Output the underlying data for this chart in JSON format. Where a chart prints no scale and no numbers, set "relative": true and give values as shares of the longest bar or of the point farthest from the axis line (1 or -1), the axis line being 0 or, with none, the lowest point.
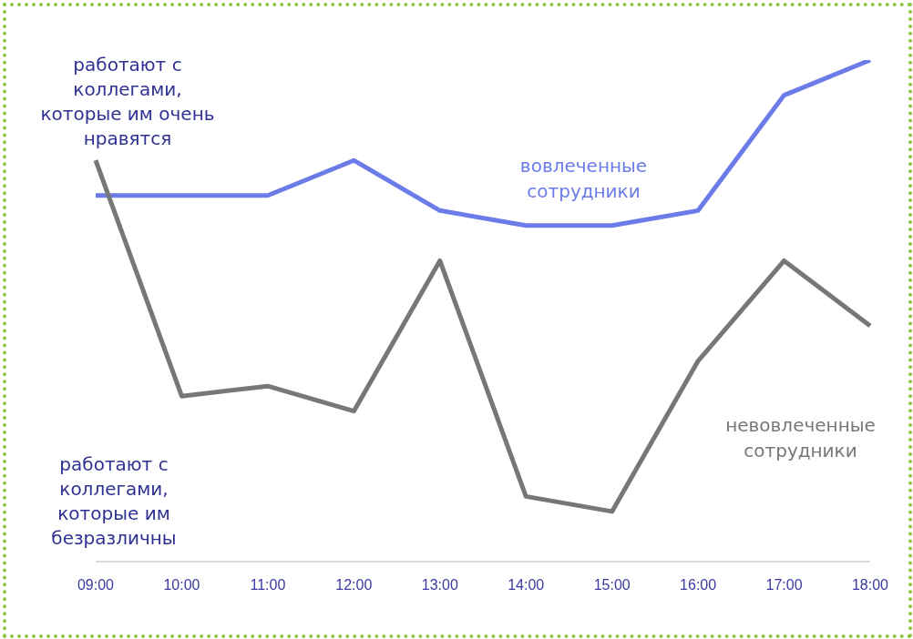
{
  "chart_data": {
    "type": "line",
    "relative": true,
    "categories": [
      "09:00",
      "10:00",
      "11:00",
      "12:00",
      "13:00",
      "14:00",
      "15:00",
      "16:00",
      "17:00",
      "18:00"
    ],
    "series": [
      {
        "name": "вовлеченные сотрудники",
        "color": "#6b7be8",
        "values": [
          0.73,
          0.73,
          0.73,
          0.8,
          0.7,
          0.67,
          0.67,
          0.7,
          0.93,
          1
        ]
      },
      {
        "name": "невовлеченные сотрудники",
        "color": "#777777",
        "values": [
          0.8,
          0.33,
          0.35,
          0.3,
          0.6,
          0.13,
          0.1,
          0.4,
          0.6,
          0.47
        ]
      }
    ],
    "annotations": [
      "работают с коллегами, которые им очень нравятся",
      "работают с коллегами, которые им безразличны"
    ],
    "marker": "none",
    "line_style": "solid",
    "grid": false,
    "legend": false
  }
}
